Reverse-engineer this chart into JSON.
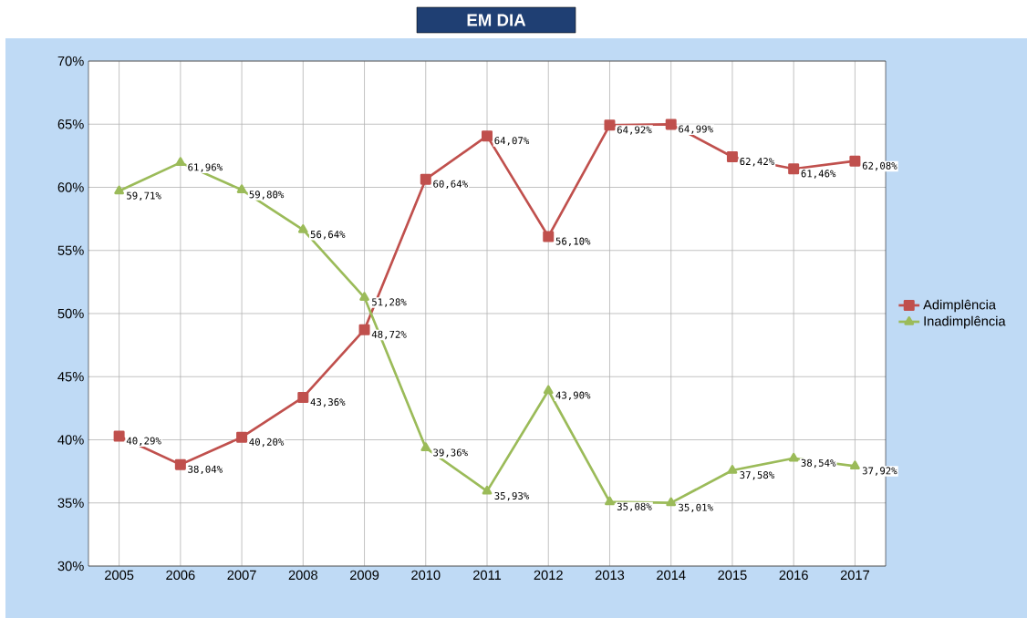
{
  "chart_data": {
    "type": "line",
    "title": "EM DIA",
    "categories": [
      "2005",
      "2006",
      "2007",
      "2008",
      "2009",
      "2010",
      "2011",
      "2012",
      "2013",
      "2014",
      "2015",
      "2016",
      "2017"
    ],
    "series": [
      {
        "name": "Adimplência",
        "color": "#c0504d",
        "marker": "square",
        "values": [
          40.29,
          38.04,
          40.2,
          43.36,
          48.72,
          60.64,
          64.07,
          56.1,
          64.92,
          64.99,
          62.42,
          61.46,
          62.08
        ],
        "value_labels": [
          "40,29%",
          "38,04%",
          "40,20%",
          "43,36%",
          "48,72%",
          "60,64%",
          "64,07%",
          "56,10%",
          "64,92%",
          "64,99%",
          "62,42%",
          "61,46%",
          "62,08%"
        ]
      },
      {
        "name": "Inadimplência",
        "color": "#9bbb59",
        "marker": "triangle",
        "values": [
          59.71,
          61.96,
          59.8,
          56.64,
          51.28,
          39.36,
          35.93,
          43.9,
          35.08,
          35.01,
          37.58,
          38.54,
          37.92
        ],
        "value_labels": [
          "59,71%",
          "61,96%",
          "59,80%",
          "56,64%",
          "51,28%",
          "39,36%",
          "35,93%",
          "43,90%",
          "35,08%",
          "35,01%",
          "37,58%",
          "38,54%",
          "37,92%"
        ]
      }
    ],
    "ylim": [
      30,
      70
    ],
    "yticks": [
      {
        "value": 30,
        "label": "30%"
      },
      {
        "value": 35,
        "label": "35%"
      },
      {
        "value": 40,
        "label": "40%"
      },
      {
        "value": 45,
        "label": "45%"
      },
      {
        "value": 50,
        "label": "50%"
      },
      {
        "value": 55,
        "label": "55%"
      },
      {
        "value": 60,
        "label": "60%"
      },
      {
        "value": 65,
        "label": "65%"
      },
      {
        "value": 70,
        "label": "70%"
      }
    ],
    "grid": true,
    "legend": "right",
    "line_style": "solid"
  }
}
